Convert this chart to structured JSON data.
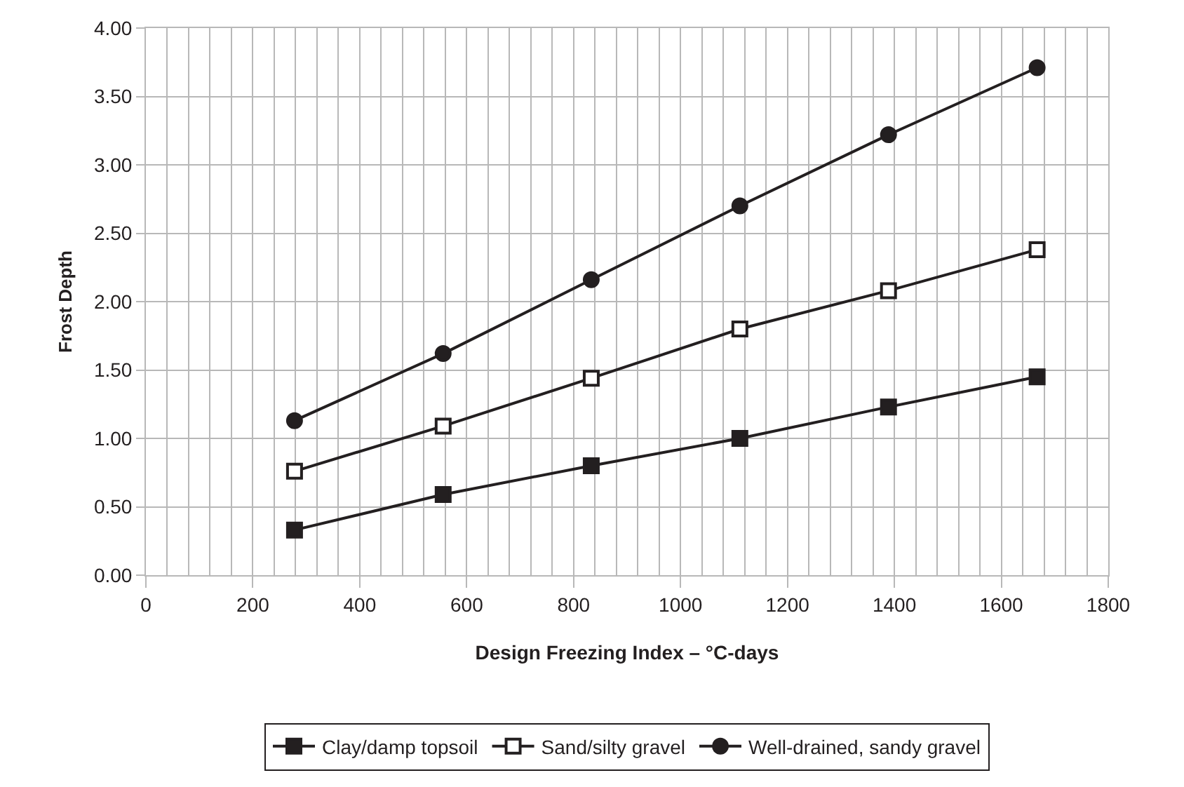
{
  "chart_data": {
    "type": "line",
    "xlabel": "Design Freezing Index – °C-days",
    "ylabel": "Frost Depth",
    "x": [
      278,
      556,
      833,
      1111,
      1389,
      1667
    ],
    "series": [
      {
        "name": "Clay/damp topsoil",
        "color": "#231f20",
        "marker": "square",
        "values": [
          0.33,
          0.59,
          0.8,
          1.0,
          1.23,
          1.45
        ]
      },
      {
        "name": "Sand/silty gravel",
        "color": "#231f20",
        "marker": "square-open",
        "values": [
          0.76,
          1.09,
          1.44,
          1.8,
          2.08,
          2.38
        ]
      },
      {
        "name": "Well-drained, sandy gravel",
        "color": "#231f20",
        "marker": "circle",
        "values": [
          1.13,
          1.62,
          2.16,
          2.7,
          3.22,
          3.71
        ]
      }
    ],
    "xlim": [
      0,
      1800
    ],
    "xticks": [
      0,
      200,
      400,
      600,
      800,
      1000,
      1200,
      1400,
      1600,
      1800
    ],
    "ylim": [
      0,
      4
    ],
    "yticks": [
      {
        "value": 0,
        "label": "0.00"
      },
      {
        "value": 0.5,
        "label": "0.50"
      },
      {
        "value": 1,
        "label": "1.00"
      },
      {
        "value": 1.5,
        "label": "1.50"
      },
      {
        "value": 2,
        "label": "2.00"
      },
      {
        "value": 2.5,
        "label": "2.50"
      },
      {
        "value": 3,
        "label": "3.00"
      },
      {
        "value": 3.5,
        "label": "3.50"
      },
      {
        "value": 4,
        "label": "4.00"
      }
    ],
    "grid": true,
    "legend": "bottom",
    "line_style": "solid"
  }
}
